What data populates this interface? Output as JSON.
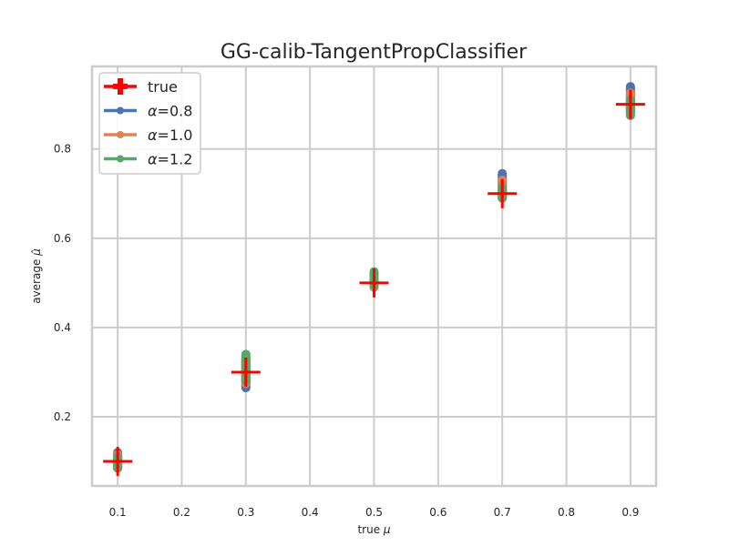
{
  "chart_data": {
    "type": "scatter",
    "title": "GG-calib-TangentPropClassifier",
    "xlabel_prefix": "true ",
    "xlabel_symbol": "μ",
    "ylabel_prefix": "average ",
    "ylabel_symbol": "μ̂",
    "xlim": [
      0.06,
      0.94
    ],
    "ylim": [
      0.045,
      0.985
    ],
    "xticks": [
      0.1,
      0.2,
      0.3,
      0.4,
      0.5,
      0.6,
      0.7,
      0.8,
      0.9
    ],
    "xtick_labels": [
      "0.1",
      "0.2",
      "0.3",
      "0.4",
      "0.5",
      "0.6",
      "0.7",
      "0.8",
      "0.9"
    ],
    "yticks": [
      0.2,
      0.4,
      0.6,
      0.8
    ],
    "ytick_labels": [
      "0.2",
      "0.4",
      "0.6",
      "0.8"
    ],
    "grid": true,
    "legend_position": "top-left",
    "x": [
      0.1,
      0.3,
      0.5,
      0.7,
      0.9
    ],
    "series": [
      {
        "name": "true",
        "marker": "plus",
        "color": "#ff0000",
        "values": [
          0.1,
          0.3,
          0.5,
          0.7,
          0.9
        ]
      },
      {
        "name": "α=0.8",
        "label_symbol": "α",
        "label_value": "=0.8",
        "marker": "errorbar",
        "color": "#4c72b0",
        "low": [
          0.085,
          0.265,
          0.49,
          0.69,
          0.885
        ],
        "high": [
          0.12,
          0.325,
          0.515,
          0.745,
          0.94
        ]
      },
      {
        "name": "α=1.0",
        "label_symbol": "α",
        "label_value": "=1.0",
        "marker": "errorbar",
        "color": "#dd8452",
        "low": [
          0.085,
          0.275,
          0.49,
          0.69,
          0.88
        ],
        "high": [
          0.115,
          0.33,
          0.52,
          0.73,
          0.925
        ]
      },
      {
        "name": "α=1.2",
        "label_symbol": "α",
        "label_value": "=1.2",
        "marker": "errorbar",
        "color": "#55a868",
        "low": [
          0.085,
          0.28,
          0.495,
          0.69,
          0.875
        ],
        "high": [
          0.11,
          0.34,
          0.525,
          0.715,
          0.91
        ]
      }
    ]
  }
}
